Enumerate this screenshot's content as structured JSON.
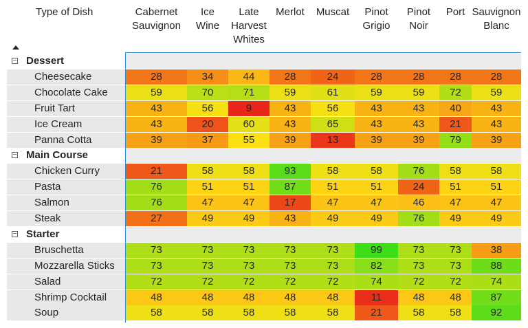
{
  "chart_data": {
    "type": "heatmap",
    "row_header": "Type of Dish",
    "columns": [
      "Cabernet\nSauvignon",
      "Ice\nWine",
      "Late\nHarvest\nWhites",
      "Merlot",
      "Muscat",
      "Pinot\nGrigio",
      "Pinot\nNoir",
      "Port",
      "Sauvignon\nBlanc"
    ],
    "color_scale": {
      "low": "#e8261a",
      "mid": "#ffe014",
      "high": "#3fdc1a",
      "min": 9,
      "max": 99
    },
    "groups": [
      {
        "name": "Dessert",
        "rows": [
          {
            "label": "Cheesecake",
            "values": [
              28,
              34,
              44,
              28,
              24,
              28,
              28,
              28,
              28
            ]
          },
          {
            "label": "Chocolate Cake",
            "values": [
              59,
              70,
              71,
              59,
              61,
              59,
              59,
              72,
              59
            ]
          },
          {
            "label": "Fruit Tart",
            "values": [
              43,
              56,
              9,
              43,
              56,
              43,
              43,
              40,
              43
            ]
          },
          {
            "label": "Ice Cream",
            "values": [
              43,
              20,
              60,
              43,
              65,
              43,
              43,
              21,
              43
            ]
          },
          {
            "label": "Panna Cotta",
            "values": [
              39,
              37,
              55,
              39,
              13,
              39,
              39,
              79,
              39
            ]
          }
        ]
      },
      {
        "name": "Main Course",
        "rows": [
          {
            "label": "Chicken Curry",
            "values": [
              21,
              58,
              58,
              93,
              58,
              58,
              76,
              58,
              58
            ]
          },
          {
            "label": "Pasta",
            "values": [
              76,
              51,
              51,
              87,
              51,
              51,
              24,
              51,
              51
            ]
          },
          {
            "label": "Salmon",
            "values": [
              76,
              47,
              47,
              17,
              47,
              47,
              46,
              47,
              47
            ]
          },
          {
            "label": "Steak",
            "values": [
              27,
              49,
              49,
              43,
              49,
              49,
              76,
              49,
              49
            ]
          }
        ]
      },
      {
        "name": "Starter",
        "rows": [
          {
            "label": "Bruschetta",
            "values": [
              73,
              73,
              73,
              73,
              73,
              99,
              73,
              73,
              38
            ]
          },
          {
            "label": "Mozzarella Sticks",
            "values": [
              73,
              73,
              73,
              73,
              73,
              82,
              73,
              73,
              88
            ]
          },
          {
            "label": "Salad",
            "values": [
              72,
              72,
              72,
              72,
              72,
              74,
              72,
              72,
              74
            ]
          },
          {
            "label": "Shrimp Cocktail",
            "values": [
              48,
              48,
              48,
              48,
              48,
              11,
              48,
              48,
              87
            ]
          },
          {
            "label": "Soup",
            "values": [
              58,
              58,
              58,
              58,
              58,
              21,
              58,
              58,
              92
            ]
          }
        ]
      }
    ]
  },
  "ui": {
    "collapse_glyph": "−"
  }
}
